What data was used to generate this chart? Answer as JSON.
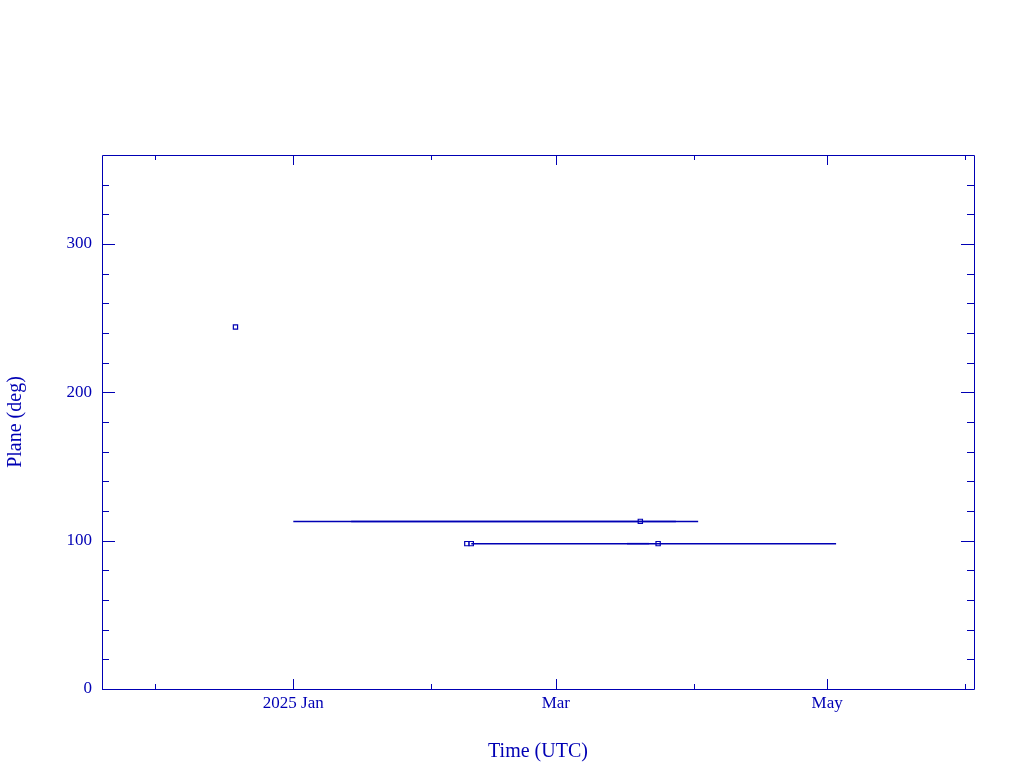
{
  "chart_data": {
    "type": "scatter",
    "xlabel": "Time (UTC)",
    "ylabel": "Plane (deg)",
    "xlim": [
      "2024-11-19",
      "2025-06-03"
    ],
    "xticks": [
      {
        "value": "2024-12-01",
        "label": null
      },
      {
        "value": "2025-01-01",
        "label": "2025 Jan"
      },
      {
        "value": "2025-02-01",
        "label": null
      },
      {
        "value": "2025-03-01",
        "label": "Mar"
      },
      {
        "value": "2025-04-01",
        "label": null
      },
      {
        "value": "2025-05-01",
        "label": "May"
      },
      {
        "value": "2025-06-01",
        "label": null
      }
    ],
    "ylim": [
      0,
      360
    ],
    "yticks": [
      0,
      {
        "value": 20,
        "label": null
      },
      {
        "value": 40,
        "label": null
      },
      {
        "value": 60,
        "label": null
      },
      {
        "value": 80,
        "label": null
      },
      100,
      {
        "value": 120,
        "label": null
      },
      {
        "value": 140,
        "label": null
      },
      {
        "value": 160,
        "label": null
      },
      {
        "value": 180,
        "label": null
      },
      200,
      {
        "value": 220,
        "label": null
      },
      {
        "value": 240,
        "label": null
      },
      {
        "value": 260,
        "label": null
      },
      {
        "value": 280,
        "label": null
      },
      300,
      {
        "value": 320,
        "label": null
      },
      {
        "value": 340,
        "label": null
      }
    ],
    "series": [
      {
        "type": "line",
        "marker": "none",
        "color": "#0000b4",
        "x": [
          "2025-01-01",
          "2025-04-02"
        ],
        "values": [
          113,
          113
        ]
      },
      {
        "type": "line",
        "marker": "none",
        "color": "#0000b4",
        "x": [
          "2025-01-14",
          "2025-03-28"
        ],
        "values": [
          113,
          113
        ]
      },
      {
        "type": "line",
        "marker": "none",
        "color": "#0000b4",
        "x": [
          "2025-02-10",
          "2025-05-03"
        ],
        "values": [
          98,
          98
        ]
      },
      {
        "type": "line",
        "marker": "none",
        "color": "#0000b4",
        "x": [
          "2025-03-17",
          "2025-03-22"
        ],
        "values": [
          98,
          98
        ]
      },
      {
        "marker": "square",
        "color": "#0000b4",
        "x": [
          "2024-12-19",
          "2025-02-09",
          "2025-02-10",
          "2025-03-20",
          "2025-03-24"
        ],
        "values": [
          244,
          98,
          98,
          113,
          98
        ]
      }
    ]
  }
}
